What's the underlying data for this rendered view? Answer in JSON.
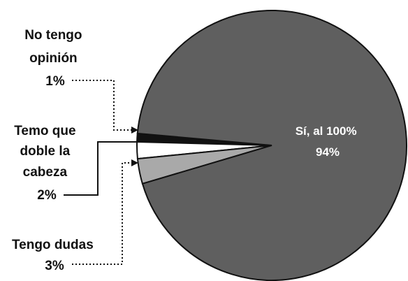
{
  "chart_data": {
    "type": "pie",
    "slices": [
      {
        "label": "Sí, al 100%",
        "value": 94,
        "display": "94%",
        "color": "#5f5f5f"
      },
      {
        "label": "No tengo opinión",
        "value": 1,
        "display": "1%",
        "color": "#111111"
      },
      {
        "label": "Temo que doble la cabeza",
        "value": 2,
        "display": "2%",
        "color": "#ffffff"
      },
      {
        "label": "Tengo dudas",
        "value": 3,
        "display": "3%",
        "color": "#a9a9a9"
      }
    ],
    "annotations": {
      "no_opinion": {
        "line1": "No tengo",
        "line2": "opinión",
        "pct": "1%"
      },
      "doble": {
        "line1": "Temo que",
        "line2": "doble la",
        "line3": "cabeza",
        "pct": "2%"
      },
      "dudas": {
        "line1": "Tengo dudas",
        "pct": "3%"
      },
      "si": {
        "line1": "Sí, al 100%",
        "pct": "94%"
      }
    }
  }
}
